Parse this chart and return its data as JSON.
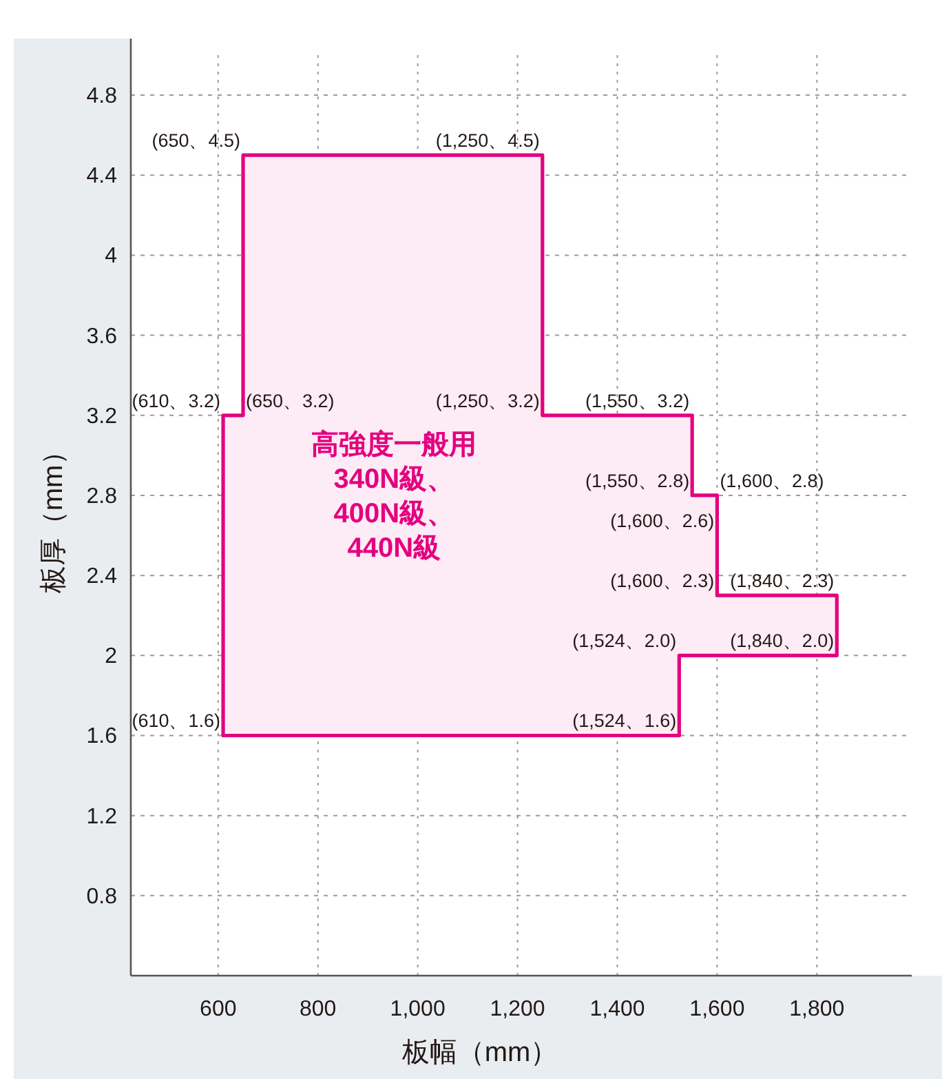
{
  "chart_data": {
    "type": "area",
    "xlabel": "板幅（mm）",
    "ylabel": "板厚（mm）",
    "series": [
      {
        "color": "#e4007f",
        "x": [
          610,
          610,
          650,
          650,
          1250,
          1250,
          1550,
          1550,
          1600,
          1600,
          1840,
          1840,
          1524,
          1524
        ],
        "values": [
          1.6,
          3.2,
          3.2,
          4.5,
          4.5,
          3.2,
          3.2,
          2.8,
          2.8,
          2.3,
          2.3,
          2.0,
          2.0,
          1.6
        ]
      }
    ],
    "xlim": [
      425,
      1990
    ],
    "ylim": [
      0.4,
      5.0
    ],
    "xticks": [
      600,
      800,
      {
        "value": 1000,
        "label": "1,000"
      },
      {
        "value": 1200,
        "label": "1,200"
      },
      {
        "value": 1400,
        "label": "1,400"
      },
      {
        "value": 1600,
        "label": "1,600"
      },
      {
        "value": 1800,
        "label": "1,800"
      }
    ],
    "yticks": [
      0.8,
      1.2,
      1.6,
      2,
      2.4,
      2.8,
      3.2,
      3.6,
      4,
      4.4,
      4.8
    ],
    "grid": true,
    "annotations": [
      "高強度一般用\n340N級、\n400N級、\n440N級",
      {
        "text": "(650、4.5)",
        "x": 650,
        "y": 4.5
      },
      {
        "text": "(1,250、4.5)",
        "x": 1250,
        "y": 4.5
      },
      {
        "text": "(610、3.2)",
        "x": 610,
        "y": 3.2
      },
      {
        "text": "(650、3.2)",
        "x": 650,
        "y": 3.2
      },
      {
        "text": "(1,250、3.2)",
        "x": 1250,
        "y": 3.2
      },
      {
        "text": "(1,550、3.2)",
        "x": 1550,
        "y": 3.2
      },
      {
        "text": "(1,550、2.8)",
        "x": 1550,
        "y": 2.8
      },
      {
        "text": "(1,600、2.8)",
        "x": 1600,
        "y": 2.8
      },
      {
        "text": "(1,600、2.6)",
        "x": 1600,
        "y": 2.6
      },
      {
        "text": "(1,600、2.3)",
        "x": 1600,
        "y": 2.3
      },
      {
        "text": "(1,840、2.3)",
        "x": 1840,
        "y": 2.3
      },
      {
        "text": "(1,524、2.0)",
        "x": 1524,
        "y": 2.0
      },
      {
        "text": "(1,840、2.0)",
        "x": 1840,
        "y": 2.0
      },
      {
        "text": "(610、1.6)",
        "x": 610,
        "y": 1.6
      },
      {
        "text": "(1,524、1.6)",
        "x": 1524,
        "y": 1.6
      }
    ]
  }
}
